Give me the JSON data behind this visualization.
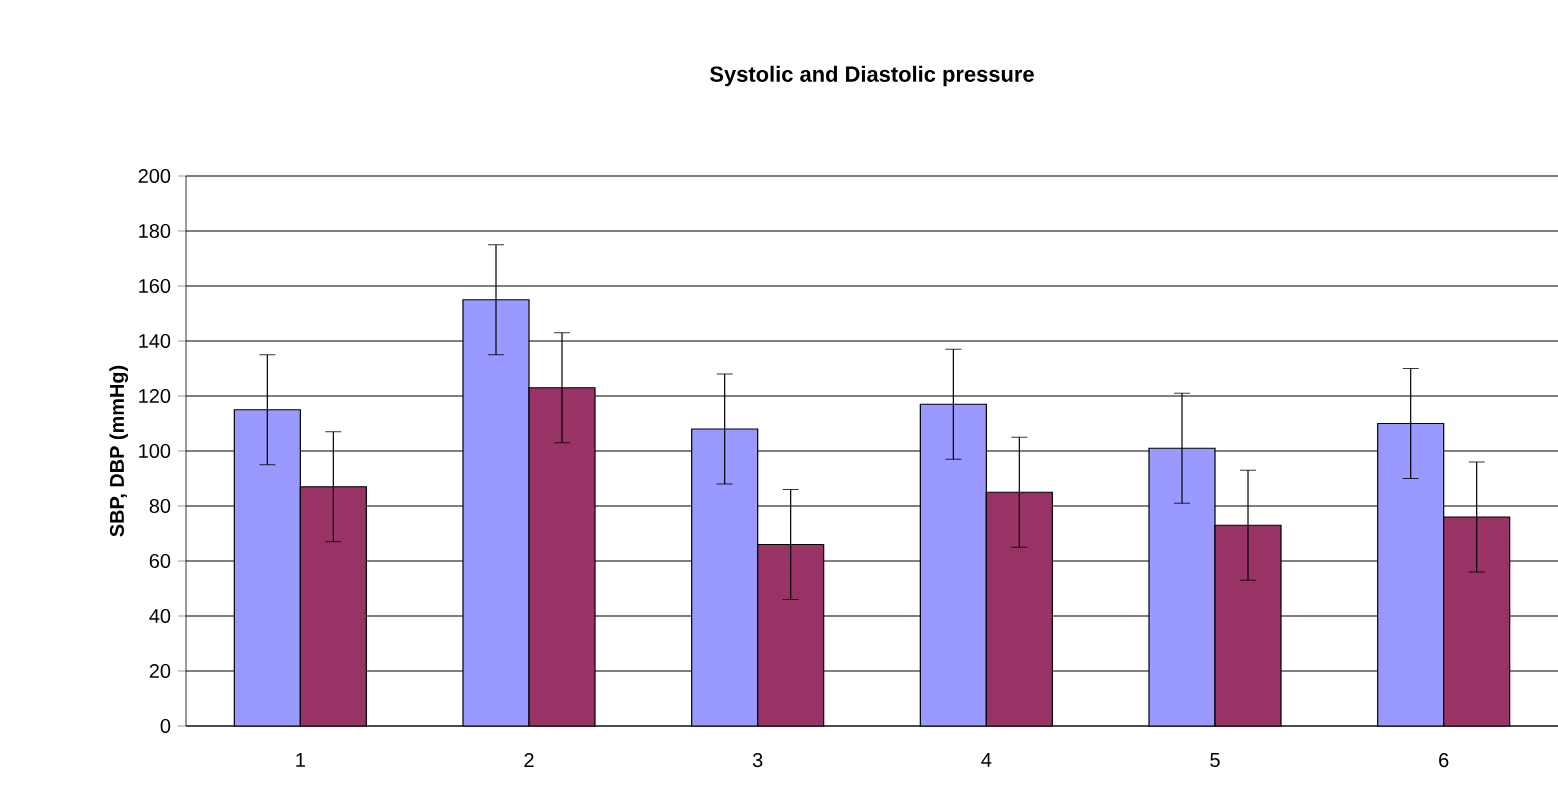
{
  "chart_data": {
    "type": "bar",
    "title": "Systolic and Diastolic pressure",
    "ylabel": "SBP, DBP (mmHg)",
    "categories": [
      "1",
      "2",
      "3",
      "4",
      "5",
      "6"
    ],
    "series": [
      {
        "color": "#9999ff",
        "values": [
          115,
          155,
          108,
          117,
          101,
          110
        ],
        "errors": [
          20,
          20,
          20,
          20,
          20,
          20
        ]
      },
      {
        "color": "#993366",
        "values": [
          87,
          123,
          66,
          85,
          73,
          76
        ],
        "errors": [
          20,
          20,
          20,
          20,
          20,
          20
        ]
      }
    ],
    "ylim": [
      0,
      200
    ],
    "yticks": [
      0,
      20,
      40,
      60,
      80,
      100,
      120,
      140,
      160,
      180,
      200
    ],
    "grid": "y"
  }
}
